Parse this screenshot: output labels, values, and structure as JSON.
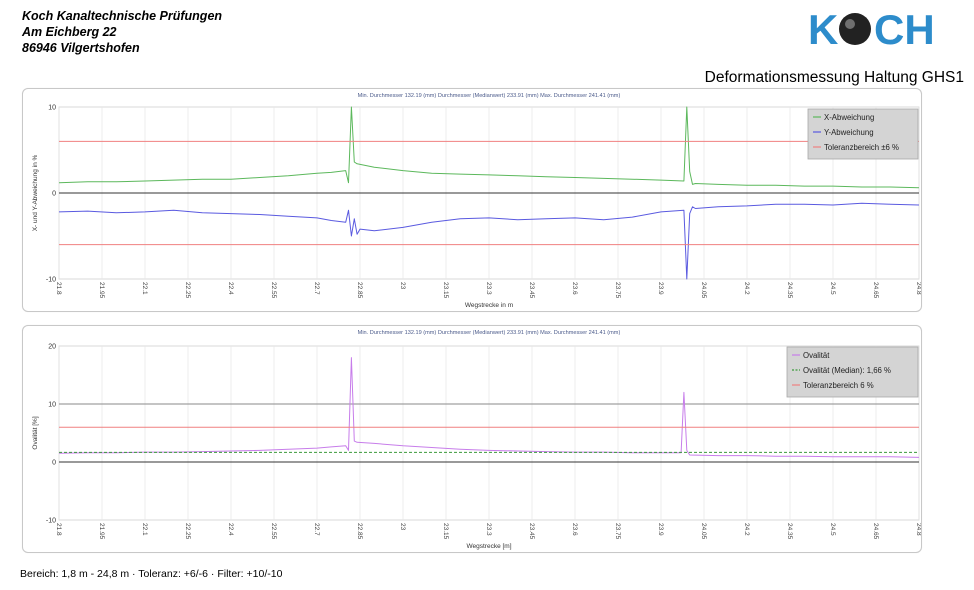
{
  "company": {
    "line1": "Koch Kanaltechnische Prüfungen",
    "line2": "Am Eichberg 22",
    "line3": "86946 Vilgertshofen"
  },
  "logo": {
    "text": "KOCH",
    "color": "#2d8ccb",
    "ball_color": "#222222"
  },
  "report_title": "Deformationsmessung Haltung GHS1",
  "footer": "Bereich: 1,8 m - 24,8 m · Toleranz: +6/-6 · Filter: +10/-10",
  "chart_data": [
    {
      "type": "line",
      "header": "Min. Durchmesser 132.19 (mm) Durchmesser (Medianwert) 233.91 (mm) Max. Durchmesser 241.41 (mm)",
      "xlabel": "Wegstrecke in m",
      "ylabel": "X- und Y-Abweichung in %",
      "xlim": [
        21.8,
        24.8
      ],
      "ylim": [
        -10,
        10
      ],
      "xticks": [
        "21.8",
        "21.95",
        "22.1",
        "22.25",
        "22.4",
        "22.55",
        "22.7",
        "22.85",
        "23",
        "23.15",
        "23.3",
        "23.45",
        "23.6",
        "23.75",
        "23.9",
        "24.05",
        "24.2",
        "24.35",
        "24.5",
        "24.65",
        "24.8"
      ],
      "yticks": [
        "10",
        "0",
        "-10"
      ],
      "grid": true,
      "legend_position": "top-right",
      "series": [
        {
          "name": "X-Abweichung",
          "color": "#5cb85c",
          "x": [
            21.8,
            21.9,
            22.0,
            22.1,
            22.2,
            22.3,
            22.4,
            22.5,
            22.6,
            22.7,
            22.75,
            22.8,
            22.81,
            22.82,
            22.83,
            22.84,
            22.9,
            23.0,
            23.1,
            23.2,
            23.3,
            23.4,
            23.5,
            23.6,
            23.7,
            23.8,
            23.9,
            23.98,
            23.99,
            24.0,
            24.01,
            24.02,
            24.1,
            24.2,
            24.3,
            24.4,
            24.5,
            24.6,
            24.7,
            24.8
          ],
          "values": [
            1.2,
            1.3,
            1.3,
            1.4,
            1.5,
            1.6,
            1.6,
            1.8,
            2.0,
            2.3,
            2.4,
            2.6,
            1.2,
            10.0,
            3.6,
            3.4,
            3.0,
            2.6,
            2.3,
            2.2,
            2.1,
            2.0,
            1.9,
            1.8,
            1.7,
            1.6,
            1.5,
            1.4,
            10.0,
            2.5,
            1.0,
            1.1,
            1.0,
            0.9,
            0.9,
            0.8,
            0.8,
            0.7,
            0.7,
            0.6
          ]
        },
        {
          "name": "Y-Abweichung",
          "color": "#5a5ae0",
          "x": [
            21.8,
            21.9,
            22.0,
            22.1,
            22.2,
            22.3,
            22.4,
            22.5,
            22.6,
            22.7,
            22.75,
            22.8,
            22.81,
            22.82,
            22.83,
            22.84,
            22.85,
            22.9,
            23.0,
            23.1,
            23.2,
            23.3,
            23.4,
            23.5,
            23.6,
            23.7,
            23.8,
            23.9,
            23.98,
            23.99,
            24.0,
            24.01,
            24.02,
            24.1,
            24.2,
            24.3,
            24.4,
            24.5,
            24.6,
            24.7,
            24.8
          ],
          "values": [
            -2.2,
            -2.1,
            -2.3,
            -2.2,
            -2.0,
            -2.3,
            -2.4,
            -2.5,
            -2.7,
            -2.9,
            -3.2,
            -3.4,
            -2.0,
            -5.0,
            -3.0,
            -4.8,
            -4.2,
            -4.4,
            -4.0,
            -3.4,
            -3.0,
            -2.9,
            -3.1,
            -3.0,
            -2.9,
            -3.1,
            -2.8,
            -2.2,
            -2.0,
            -10.0,
            -2.4,
            -1.6,
            -1.8,
            -1.6,
            -1.5,
            -1.3,
            -1.3,
            -1.4,
            -1.2,
            -1.3,
            -1.4
          ]
        },
        {
          "name": "Toleranzbereich ±6 %",
          "color": "#f08080",
          "x": [
            21.8,
            24.8
          ],
          "values": [
            6,
            6
          ],
          "mirror": true
        }
      ]
    },
    {
      "type": "line",
      "header": "Min. Durchmesser 132.19 (mm) Durchmesser (Medianwert) 233.91 (mm) Max. Durchmesser 241.41 (mm)",
      "xlabel": "Wegstrecke [m]",
      "ylabel": "Ovalität [%]",
      "xlim": [
        21.8,
        24.8
      ],
      "ylim": [
        -10,
        20
      ],
      "xticks": [
        "21.8",
        "21.95",
        "22.1",
        "22.25",
        "22.4",
        "22.55",
        "22.7",
        "22.85",
        "23",
        "23.15",
        "23.3",
        "23.45",
        "23.6",
        "23.75",
        "23.9",
        "24.05",
        "24.2",
        "24.35",
        "24.5",
        "24.65",
        "24.8"
      ],
      "yticks": [
        "20",
        "10",
        "0",
        "-10"
      ],
      "grid": true,
      "legend_position": "top-right",
      "series": [
        {
          "name": "Ovalität",
          "color": "#c77dea",
          "x": [
            21.8,
            21.9,
            22.0,
            22.1,
            22.2,
            22.3,
            22.4,
            22.5,
            22.6,
            22.7,
            22.75,
            22.8,
            22.81,
            22.82,
            22.83,
            22.84,
            22.9,
            23.0,
            23.1,
            23.2,
            23.3,
            23.4,
            23.5,
            23.6,
            23.7,
            23.8,
            23.9,
            23.97,
            23.98,
            23.99,
            24.0,
            24.1,
            24.2,
            24.3,
            24.4,
            24.5,
            24.6,
            24.7,
            24.8
          ],
          "values": [
            1.5,
            1.6,
            1.6,
            1.7,
            1.7,
            1.8,
            1.9,
            2.0,
            2.2,
            2.4,
            2.6,
            2.8,
            2.0,
            18.0,
            3.6,
            3.4,
            3.2,
            2.8,
            2.5,
            2.2,
            2.0,
            1.9,
            1.8,
            1.7,
            1.7,
            1.6,
            1.6,
            1.6,
            12.0,
            2.0,
            1.2,
            1.1,
            1.1,
            1.0,
            1.0,
            0.9,
            0.9,
            0.9,
            0.8
          ]
        },
        {
          "name": "Ovalität (Median): 1,66 %",
          "color": "#3a9a3a",
          "dashed": true,
          "x": [
            21.8,
            24.8
          ],
          "values": [
            1.66,
            1.66
          ]
        },
        {
          "name": "Toleranzbereich 6 %",
          "color": "#f08080",
          "x": [
            21.8,
            24.8
          ],
          "values": [
            6,
            6
          ]
        }
      ]
    }
  ]
}
